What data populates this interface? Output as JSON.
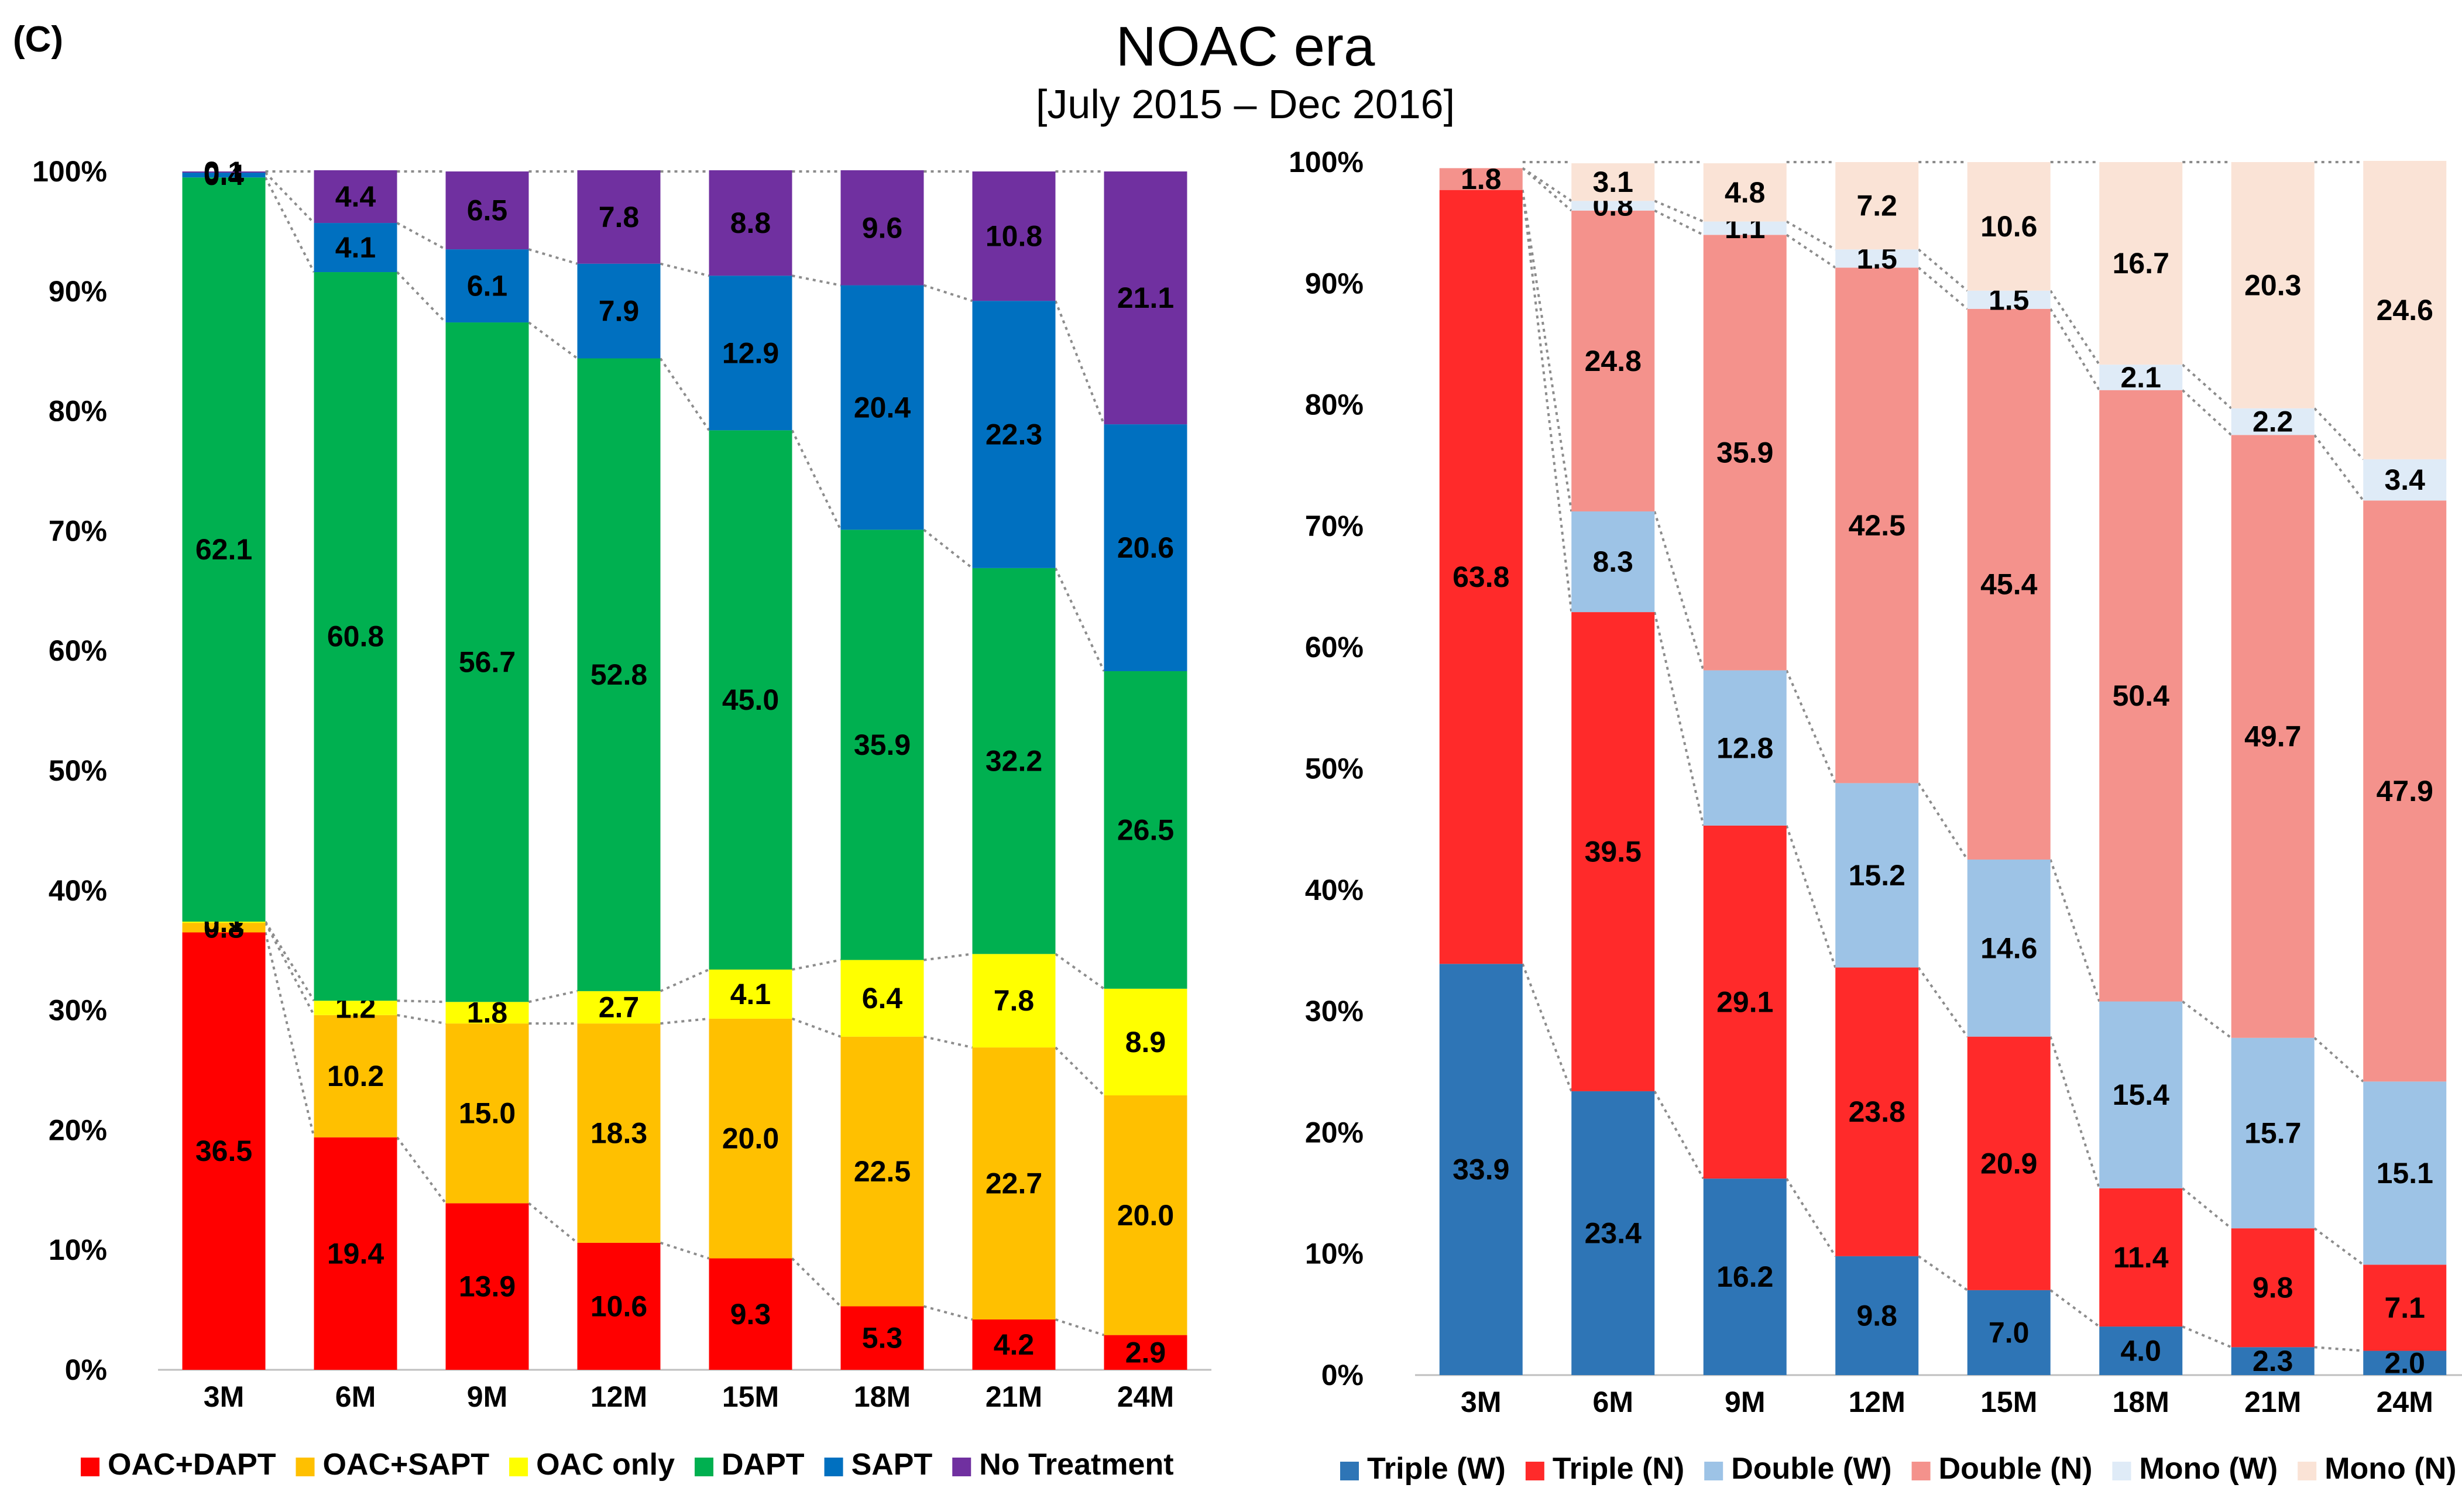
{
  "figure": {
    "panel_label": "(C)",
    "title": "NOAC era",
    "subtitle": "[July 2015 – Dec 2016]"
  },
  "chart_data": [
    {
      "type": "bar",
      "stacked": true,
      "normalized": true,
      "title": "",
      "xlabel": "",
      "ylabel": "",
      "ylim": [
        0,
        100
      ],
      "y_ticks": [
        "0%",
        "10%",
        "20%",
        "30%",
        "40%",
        "50%",
        "60%",
        "70%",
        "80%",
        "90%",
        "100%"
      ],
      "categories": [
        "3M",
        "6M",
        "9M",
        "12M",
        "15M",
        "18M",
        "21M",
        "24M"
      ],
      "legend_position": "bottom",
      "connector_lines": "dotted",
      "series": [
        {
          "name": "OAC+DAPT",
          "color": "#ff0000",
          "label_color": "#000000",
          "values": [
            36.5,
            19.4,
            13.9,
            10.6,
            9.3,
            5.3,
            4.2,
            2.9
          ],
          "labels": [
            "36.5",
            "19.4",
            "13.9",
            "10.6",
            "9.3",
            "5.3",
            "4.2",
            "2.9"
          ]
        },
        {
          "name": "OAC+SAPT",
          "color": "#ffc000",
          "label_color": "#000000",
          "values": [
            0.8,
            10.2,
            15.0,
            18.3,
            20.0,
            22.5,
            22.7,
            20.0
          ],
          "labels": [
            "0.8",
            "10.2",
            "15.0",
            "18.3",
            "20.0",
            "22.5",
            "22.7",
            "20.0"
          ]
        },
        {
          "name": "OAC only",
          "color": "#ffff00",
          "label_color": "#000000",
          "values": [
            0.1,
            1.2,
            1.8,
            2.7,
            4.1,
            6.4,
            7.8,
            8.9
          ],
          "labels": [
            "0.1",
            "1.2",
            "1.8",
            "2.7",
            "4.1",
            "6.4",
            "7.8",
            "8.9"
          ]
        },
        {
          "name": "DAPT",
          "color": "#00b050",
          "label_color": "#000000",
          "values": [
            62.1,
            60.8,
            56.7,
            52.8,
            45.0,
            35.9,
            32.2,
            26.5
          ],
          "labels": [
            "62.1",
            "60.8",
            "56.7",
            "52.8",
            "45.0",
            "35.9",
            "32.2",
            "26.5"
          ]
        },
        {
          "name": "SAPT",
          "color": "#0070c0",
          "label_color": "#000000",
          "values": [
            0.4,
            4.1,
            6.1,
            7.9,
            12.9,
            20.4,
            22.3,
            20.6
          ],
          "labels": [
            "0.4",
            "4.1",
            "6.1",
            "7.9",
            "12.9",
            "20.4",
            "22.3",
            "20.6"
          ]
        },
        {
          "name": "No Treatment",
          "color": "#7030a0",
          "label_color": "#000000",
          "values": [
            0.1,
            4.4,
            6.5,
            7.8,
            8.8,
            9.6,
            10.8,
            21.1
          ],
          "labels": [
            "0.1",
            "4.4",
            "6.5",
            "7.8",
            "8.8",
            "9.6",
            "10.8",
            "21.1"
          ]
        }
      ]
    },
    {
      "type": "bar",
      "stacked": true,
      "normalized": true,
      "title": "",
      "xlabel": "",
      "ylabel": "",
      "ylim": [
        0,
        100
      ],
      "y_ticks": [
        "0%",
        "10%",
        "20%",
        "30%",
        "40%",
        "50%",
        "60%",
        "70%",
        "80%",
        "90%",
        "100%"
      ],
      "categories": [
        "3M",
        "6M",
        "9M",
        "12M",
        "15M",
        "18M",
        "21M",
        "24M"
      ],
      "legend_position": "bottom",
      "connector_lines": "dotted",
      "series": [
        {
          "name": "Triple (W)",
          "color": "#2e75b6",
          "label_color": "#000000",
          "values": [
            33.9,
            23.4,
            16.2,
            9.8,
            7.0,
            4.0,
            2.3,
            2.0
          ],
          "labels": [
            "33.9",
            "23.4",
            "16.2",
            "9.8",
            "7.0",
            "4.0",
            "2.3",
            "2.0"
          ]
        },
        {
          "name": "Triple (N)",
          "color": "#ff2a2a",
          "label_color": "#000000",
          "values": [
            63.8,
            39.5,
            29.1,
            23.8,
            20.9,
            11.4,
            9.8,
            7.1
          ],
          "labels": [
            "63.8",
            "39.5",
            "29.1",
            "23.8",
            "20.9",
            "11.4",
            "9.8",
            "7.1"
          ]
        },
        {
          "name": "Double (W)",
          "color": "#9dc3e6",
          "label_color": "#000000",
          "values": [
            0.0,
            8.3,
            12.8,
            15.2,
            14.6,
            15.4,
            15.7,
            15.1
          ],
          "labels": [
            "",
            "8.3",
            "12.8",
            "15.2",
            "14.6",
            "15.4",
            "15.7",
            "15.1"
          ]
        },
        {
          "name": "Double (N)",
          "color": "#f4928c",
          "label_color": "#000000",
          "values": [
            1.8,
            24.8,
            35.9,
            42.5,
            45.4,
            50.4,
            49.7,
            47.9
          ],
          "labels": [
            "1.8",
            "24.8",
            "35.9",
            "42.5",
            "45.4",
            "50.4",
            "49.7",
            "47.9"
          ]
        },
        {
          "name": "Mono (W)",
          "color": "#dfebf7",
          "label_color": "#000000",
          "values": [
            0.0,
            0.8,
            1.1,
            1.5,
            1.5,
            2.1,
            2.2,
            3.4
          ],
          "labels": [
            "",
            "0.8",
            "1.1",
            "1.5",
            "1.5",
            "2.1",
            "2.2",
            "3.4"
          ]
        },
        {
          "name": "Mono (N)",
          "color": "#fae3d6",
          "label_color": "#000000",
          "values": [
            0.0,
            3.1,
            4.8,
            7.2,
            10.6,
            16.7,
            20.3,
            24.6
          ],
          "labels": [
            "",
            "3.1",
            "4.8",
            "7.2",
            "10.6",
            "16.7",
            "20.3",
            "24.6"
          ]
        }
      ]
    }
  ]
}
